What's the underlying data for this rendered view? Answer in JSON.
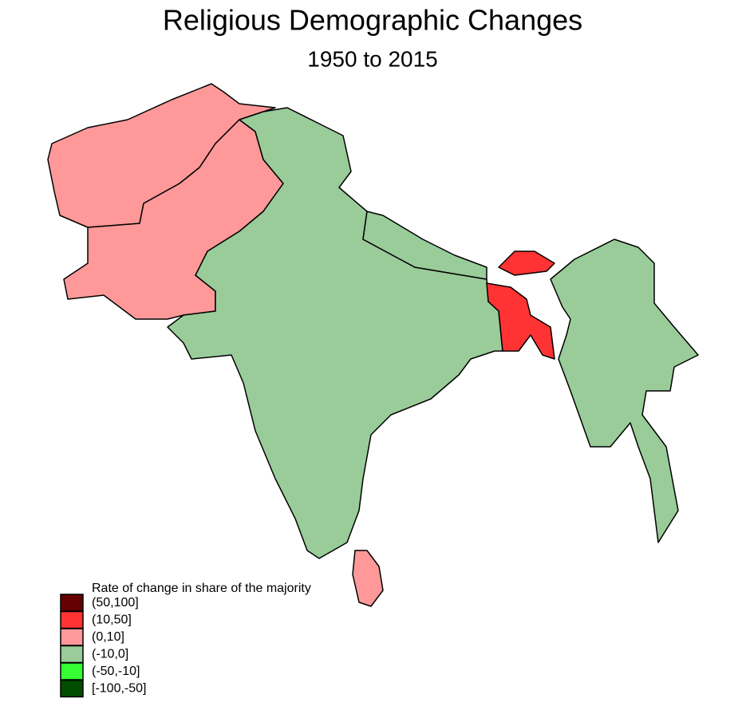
{
  "header": {
    "title": "Religious Demographic Changes",
    "subtitle": "1950 to 2015"
  },
  "legend": {
    "title": "Rate of change in share of the majority",
    "items": [
      {
        "label": "(50,100]",
        "color": "#660000"
      },
      {
        "label": "(10,50]",
        "color": "#ff3333"
      },
      {
        "label": "(0,10]",
        "color": "#ff9999"
      },
      {
        "label": "(-10,0]",
        "color": "#99cc99"
      },
      {
        "label": "(-50,-10]",
        "color": "#33ff33"
      },
      {
        "label": "[-100,-50]",
        "color": "#004d00"
      }
    ]
  }
}
